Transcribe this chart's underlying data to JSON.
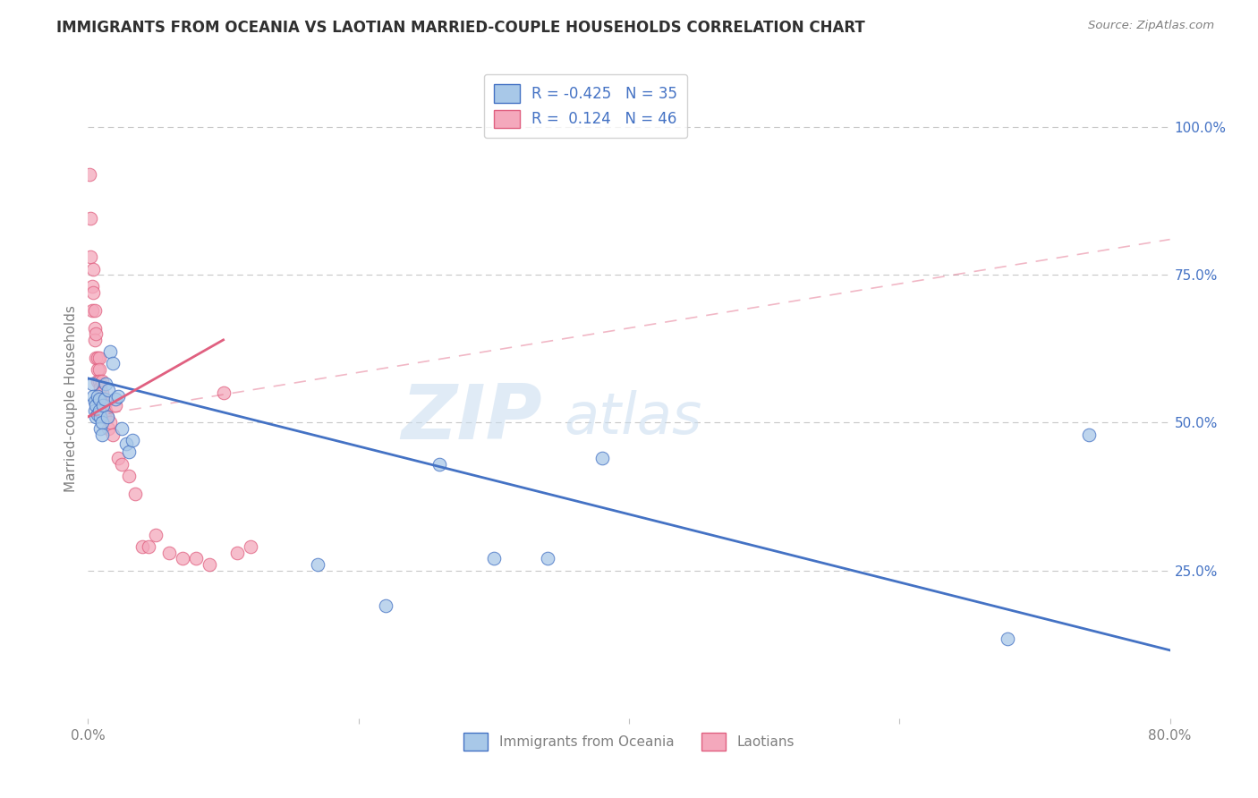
{
  "title": "IMMIGRANTS FROM OCEANIA VS LAOTIAN MARRIED-COUPLE HOUSEHOLDS CORRELATION CHART",
  "source_text": "Source: ZipAtlas.com",
  "ylabel": "Married-couple Households",
  "xlim": [
    0.0,
    0.8
  ],
  "ylim": [
    0.0,
    1.08
  ],
  "x_ticks": [
    0.0,
    0.2,
    0.4,
    0.6,
    0.8
  ],
  "x_tick_labels": [
    "0.0%",
    "",
    "",
    "",
    "80.0%"
  ],
  "y_ticks_right": [
    0.25,
    0.5,
    0.75,
    1.0
  ],
  "y_tick_labels_right": [
    "25.0%",
    "50.0%",
    "75.0%",
    "100.0%"
  ],
  "legend_R1": "-0.425",
  "legend_N1": "35",
  "legend_R2": "0.124",
  "legend_N2": "46",
  "color_blue": "#A8C8E8",
  "color_pink": "#F4A8BC",
  "color_blue_dark": "#4472C4",
  "color_pink_dark": "#E06080",
  "color_title": "#404040",
  "background_color": "#FFFFFF",
  "grid_color": "#C8C8C8",
  "blue_scatter_x": [
    0.003,
    0.004,
    0.005,
    0.005,
    0.006,
    0.006,
    0.007,
    0.007,
    0.008,
    0.008,
    0.009,
    0.009,
    0.01,
    0.01,
    0.011,
    0.012,
    0.013,
    0.014,
    0.015,
    0.016,
    0.018,
    0.02,
    0.022,
    0.025,
    0.028,
    0.03,
    0.033,
    0.17,
    0.22,
    0.26,
    0.3,
    0.34,
    0.38,
    0.68,
    0.74
  ],
  "blue_scatter_y": [
    0.565,
    0.545,
    0.535,
    0.52,
    0.53,
    0.51,
    0.545,
    0.515,
    0.54,
    0.52,
    0.51,
    0.49,
    0.5,
    0.48,
    0.53,
    0.54,
    0.565,
    0.51,
    0.555,
    0.62,
    0.6,
    0.54,
    0.545,
    0.49,
    0.465,
    0.45,
    0.47,
    0.26,
    0.19,
    0.43,
    0.27,
    0.27,
    0.44,
    0.135,
    0.48
  ],
  "pink_scatter_x": [
    0.001,
    0.002,
    0.002,
    0.003,
    0.003,
    0.004,
    0.004,
    0.005,
    0.005,
    0.005,
    0.006,
    0.006,
    0.007,
    0.007,
    0.007,
    0.008,
    0.008,
    0.008,
    0.009,
    0.009,
    0.01,
    0.01,
    0.011,
    0.011,
    0.012,
    0.012,
    0.013,
    0.014,
    0.015,
    0.016,
    0.018,
    0.02,
    0.022,
    0.025,
    0.03,
    0.035,
    0.04,
    0.045,
    0.05,
    0.06,
    0.07,
    0.08,
    0.09,
    0.1,
    0.11,
    0.12
  ],
  "pink_scatter_y": [
    0.92,
    0.845,
    0.78,
    0.73,
    0.69,
    0.76,
    0.72,
    0.69,
    0.66,
    0.64,
    0.65,
    0.61,
    0.59,
    0.61,
    0.57,
    0.61,
    0.59,
    0.57,
    0.56,
    0.54,
    0.57,
    0.55,
    0.54,
    0.52,
    0.51,
    0.53,
    0.52,
    0.51,
    0.49,
    0.5,
    0.48,
    0.53,
    0.44,
    0.43,
    0.41,
    0.38,
    0.29,
    0.29,
    0.31,
    0.28,
    0.27,
    0.27,
    0.26,
    0.55,
    0.28,
    0.29
  ],
  "blue_line_x": [
    0.0,
    0.8
  ],
  "blue_line_y": [
    0.575,
    0.115
  ],
  "pink_solid_line_x": [
    0.0,
    0.1
  ],
  "pink_solid_line_y": [
    0.51,
    0.64
  ],
  "pink_dash_line_x": [
    0.0,
    0.8
  ],
  "pink_dash_line_y": [
    0.51,
    0.81
  ],
  "dpi": 100,
  "figsize": [
    14.06,
    8.92
  ]
}
